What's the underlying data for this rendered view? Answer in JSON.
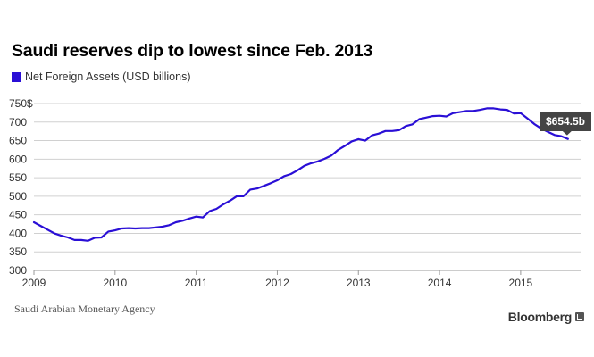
{
  "chart_data": {
    "type": "line",
    "title": "Saudi reserves dip to lowest since Feb. 2013",
    "series": [
      {
        "name": "Net Foreign Assets (USD billions)",
        "color": "#2a0fd6",
        "x": [
          2009.0,
          2009.083,
          2009.167,
          2009.25,
          2009.333,
          2009.417,
          2009.5,
          2009.583,
          2009.667,
          2009.75,
          2009.833,
          2009.917,
          2010.0,
          2010.083,
          2010.167,
          2010.25,
          2010.333,
          2010.417,
          2010.5,
          2010.583,
          2010.667,
          2010.75,
          2010.833,
          2010.917,
          2011.0,
          2011.083,
          2011.167,
          2011.25,
          2011.333,
          2011.417,
          2011.5,
          2011.583,
          2011.667,
          2011.75,
          2011.833,
          2011.917,
          2012.0,
          2012.083,
          2012.167,
          2012.25,
          2012.333,
          2012.417,
          2012.5,
          2012.583,
          2012.667,
          2012.75,
          2012.833,
          2012.917,
          2013.0,
          2013.083,
          2013.167,
          2013.25,
          2013.333,
          2013.417,
          2013.5,
          2013.583,
          2013.667,
          2013.75,
          2013.833,
          2013.917,
          2014.0,
          2014.083,
          2014.167,
          2014.25,
          2014.333,
          2014.417,
          2014.5,
          2014.583,
          2014.667,
          2014.75,
          2014.833,
          2014.917,
          2015.0,
          2015.083,
          2015.167,
          2015.25,
          2015.333,
          2015.417,
          2015.5,
          2015.583
        ],
        "values": [
          430,
          420,
          410,
          400,
          394,
          389,
          382,
          382,
          380,
          388,
          389,
          405,
          408,
          413,
          414,
          413,
          414,
          414,
          416,
          418,
          422,
          430,
          434,
          440,
          445,
          443,
          460,
          466,
          478,
          488,
          500,
          500,
          518,
          521,
          528,
          535,
          543,
          554,
          560,
          570,
          582,
          589,
          594,
          601,
          610,
          625,
          636,
          648,
          654,
          650,
          664,
          669,
          676,
          676,
          678,
          689,
          694,
          708,
          712,
          716,
          717,
          715,
          724,
          727,
          730,
          730,
          733,
          737,
          737,
          734,
          733,
          723,
          724,
          710,
          695,
          683,
          674,
          665,
          662,
          654.5
        ]
      }
    ],
    "ylabel": "",
    "xlabel": "",
    "ylim": [
      300,
      750
    ],
    "xlim": [
      2009,
      2015.75
    ],
    "yticks": [
      300,
      350,
      400,
      450,
      500,
      550,
      600,
      650,
      700,
      750
    ],
    "ytick_labels": [
      "300",
      "350",
      "400",
      "450",
      "500",
      "550",
      "600",
      "650",
      "700",
      "750$"
    ],
    "xticks": [
      2009,
      2010,
      2011,
      2012,
      2013,
      2014,
      2015
    ],
    "xtick_labels": [
      "2009",
      "2010",
      "2011",
      "2012",
      "2013",
      "2014",
      "2015"
    ],
    "grid": "horizontal",
    "annotation": {
      "text": "$654.5b",
      "x": 2015.583,
      "y": 654.5
    }
  },
  "source": "Saudi Arabian Monetary Agency",
  "brand": "Bloomberg",
  "colors": {
    "line": "#2a0fd6",
    "grid": "#d0d0d0",
    "annotation_bg": "#444444"
  }
}
